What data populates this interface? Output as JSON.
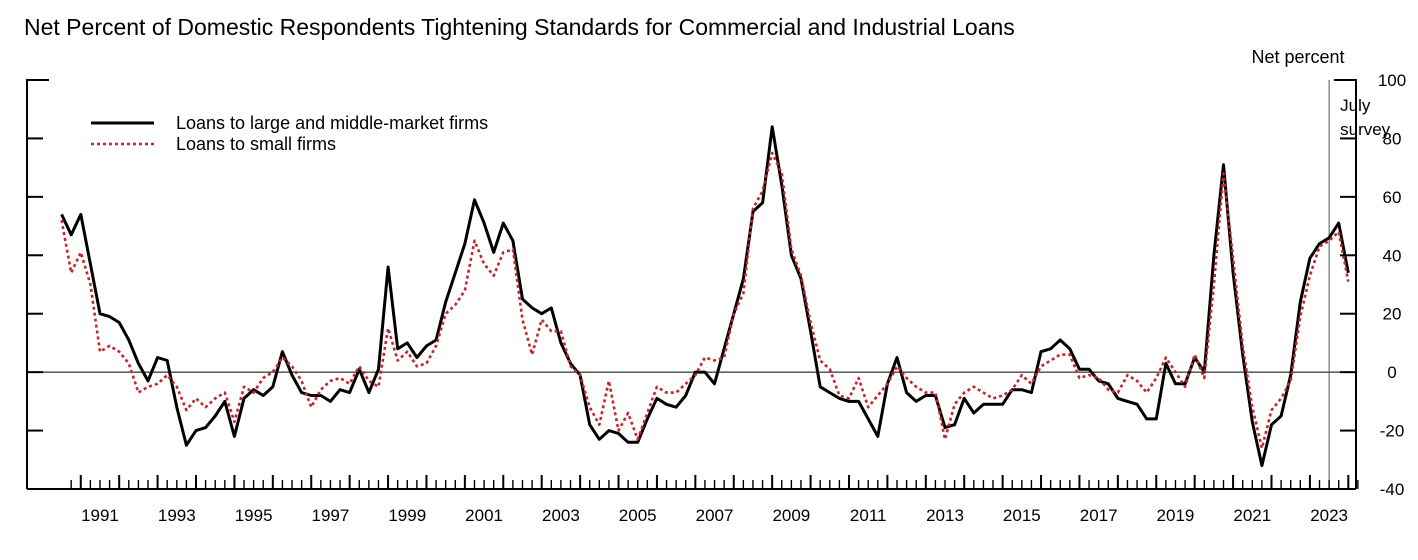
{
  "chart_data": {
    "type": "line",
    "title": "Net Percent of Domestic Respondents Tightening Standards for Commercial and Industrial Loans",
    "ylabel": "Net percent",
    "ylim": [
      -40,
      100
    ],
    "yticks": [
      -40,
      -20,
      0,
      20,
      40,
      60,
      80,
      100
    ],
    "xlim": [
      1989.6,
      2024.2
    ],
    "xtick_labels": [
      "1991",
      "1993",
      "1995",
      "1997",
      "1999",
      "2001",
      "2003",
      "2005",
      "2007",
      "2009",
      "2011",
      "2013",
      "2015",
      "2017",
      "2019",
      "2021",
      "2023"
    ],
    "legend_position": "top-left",
    "annotation": {
      "line1": "July",
      "line2": "survey",
      "x": 2023.5
    },
    "series": [
      {
        "name": "Loans to large and middle-market firms",
        "color": "#000000",
        "style": "solid",
        "points": [
          [
            1990.5,
            54
          ],
          [
            1990.75,
            47
          ],
          [
            1991.0,
            54
          ],
          [
            1991.25,
            37
          ],
          [
            1991.5,
            20
          ],
          [
            1991.75,
            19
          ],
          [
            1992.0,
            17
          ],
          [
            1992.25,
            11
          ],
          [
            1992.5,
            3
          ],
          [
            1992.75,
            -3
          ],
          [
            1993.0,
            5
          ],
          [
            1993.25,
            4
          ],
          [
            1993.5,
            -12
          ],
          [
            1993.75,
            -25
          ],
          [
            1994.0,
            -20
          ],
          [
            1994.25,
            -19
          ],
          [
            1994.5,
            -15
          ],
          [
            1994.75,
            -10
          ],
          [
            1995.0,
            -22
          ],
          [
            1995.25,
            -9
          ],
          [
            1995.5,
            -6
          ],
          [
            1995.75,
            -8
          ],
          [
            1996.0,
            -5
          ],
          [
            1996.25,
            7
          ],
          [
            1996.5,
            -1
          ],
          [
            1996.75,
            -7
          ],
          [
            1997.0,
            -8
          ],
          [
            1997.25,
            -8
          ],
          [
            1997.5,
            -10
          ],
          [
            1997.75,
            -6
          ],
          [
            1998.0,
            -7
          ],
          [
            1998.25,
            1
          ],
          [
            1998.5,
            -7
          ],
          [
            1998.75,
            1
          ],
          [
            1999.0,
            36
          ],
          [
            1999.25,
            8
          ],
          [
            1999.5,
            10
          ],
          [
            1999.75,
            5
          ],
          [
            2000.0,
            9
          ],
          [
            2000.25,
            11
          ],
          [
            2000.5,
            24
          ],
          [
            2000.75,
            34
          ],
          [
            2001.0,
            44
          ],
          [
            2001.25,
            59
          ],
          [
            2001.5,
            51
          ],
          [
            2001.75,
            41
          ],
          [
            2002.0,
            51
          ],
          [
            2002.25,
            45
          ],
          [
            2002.5,
            25
          ],
          [
            2002.75,
            22
          ],
          [
            2003.0,
            20
          ],
          [
            2003.25,
            22
          ],
          [
            2003.5,
            10
          ],
          [
            2003.75,
            3
          ],
          [
            2004.0,
            -1
          ],
          [
            2004.25,
            -18
          ],
          [
            2004.5,
            -23
          ],
          [
            2004.75,
            -20
          ],
          [
            2005.0,
            -21
          ],
          [
            2005.25,
            -24
          ],
          [
            2005.5,
            -24
          ],
          [
            2005.75,
            -16
          ],
          [
            2006.0,
            -9
          ],
          [
            2006.25,
            -11
          ],
          [
            2006.5,
            -12
          ],
          [
            2006.75,
            -8
          ],
          [
            2007.0,
            0
          ],
          [
            2007.25,
            0
          ],
          [
            2007.5,
            -4
          ],
          [
            2007.75,
            8
          ],
          [
            2008.0,
            20
          ],
          [
            2008.25,
            32
          ],
          [
            2008.5,
            55
          ],
          [
            2008.75,
            58
          ],
          [
            2009.0,
            84
          ],
          [
            2009.25,
            64
          ],
          [
            2009.5,
            40
          ],
          [
            2009.75,
            32
          ],
          [
            2010.0,
            14
          ],
          [
            2010.25,
            -5
          ],
          [
            2010.5,
            -7
          ],
          [
            2010.75,
            -9
          ],
          [
            2011.0,
            -10
          ],
          [
            2011.25,
            -10
          ],
          [
            2011.5,
            -16
          ],
          [
            2011.75,
            -22
          ],
          [
            2012.0,
            -4
          ],
          [
            2012.25,
            5
          ],
          [
            2012.5,
            -7
          ],
          [
            2012.75,
            -10
          ],
          [
            2013.0,
            -8
          ],
          [
            2013.25,
            -8
          ],
          [
            2013.5,
            -19
          ],
          [
            2013.75,
            -18
          ],
          [
            2014.0,
            -9
          ],
          [
            2014.25,
            -14
          ],
          [
            2014.5,
            -11
          ],
          [
            2014.75,
            -11
          ],
          [
            2015.0,
            -11
          ],
          [
            2015.25,
            -6
          ],
          [
            2015.5,
            -6
          ],
          [
            2015.75,
            -7
          ],
          [
            2016.0,
            7
          ],
          [
            2016.25,
            8
          ],
          [
            2016.5,
            11
          ],
          [
            2016.75,
            8
          ],
          [
            2017.0,
            1
          ],
          [
            2017.25,
            1
          ],
          [
            2017.5,
            -3
          ],
          [
            2017.75,
            -4
          ],
          [
            2018.0,
            -9
          ],
          [
            2018.25,
            -10
          ],
          [
            2018.5,
            -11
          ],
          [
            2018.75,
            -16
          ],
          [
            2019.0,
            -16
          ],
          [
            2019.25,
            3
          ],
          [
            2019.5,
            -4
          ],
          [
            2019.75,
            -4
          ],
          [
            2020.0,
            5
          ],
          [
            2020.25,
            0
          ],
          [
            2020.5,
            40
          ],
          [
            2020.75,
            71
          ],
          [
            2021.0,
            34
          ],
          [
            2021.25,
            6
          ],
          [
            2021.5,
            -17
          ],
          [
            2021.75,
            -32
          ],
          [
            2022.0,
            -18
          ],
          [
            2022.25,
            -15
          ],
          [
            2022.5,
            -1
          ],
          [
            2022.75,
            24
          ],
          [
            2023.0,
            39
          ],
          [
            2023.25,
            44
          ],
          [
            2023.5,
            46
          ],
          [
            2023.75,
            51
          ],
          [
            2024.0,
            34
          ]
        ]
      },
      {
        "name": "Loans to small firms",
        "color": "#c1272d",
        "style": "dotted",
        "points": [
          [
            1990.5,
            52
          ],
          [
            1990.75,
            34
          ],
          [
            1991.0,
            41
          ],
          [
            1991.25,
            30
          ],
          [
            1991.5,
            7
          ],
          [
            1991.75,
            9
          ],
          [
            1992.0,
            7
          ],
          [
            1992.25,
            3
          ],
          [
            1992.5,
            -7
          ],
          [
            1992.75,
            -5
          ],
          [
            1993.0,
            -4
          ],
          [
            1993.25,
            -1
          ],
          [
            1993.5,
            -5
          ],
          [
            1993.75,
            -13
          ],
          [
            1994.0,
            -9
          ],
          [
            1994.25,
            -12
          ],
          [
            1994.5,
            -9
          ],
          [
            1994.75,
            -7
          ],
          [
            1995.0,
            -17
          ],
          [
            1995.25,
            -5
          ],
          [
            1995.5,
            -7
          ],
          [
            1995.75,
            -2
          ],
          [
            1996.0,
            0
          ],
          [
            1996.25,
            5
          ],
          [
            1996.5,
            2
          ],
          [
            1996.75,
            -3
          ],
          [
            1997.0,
            -12
          ],
          [
            1997.25,
            -6
          ],
          [
            1997.5,
            -3
          ],
          [
            1997.75,
            -2
          ],
          [
            1998.0,
            -4
          ],
          [
            1998.25,
            2
          ],
          [
            1998.5,
            -3
          ],
          [
            1998.75,
            -5
          ],
          [
            1999.0,
            15
          ],
          [
            1999.25,
            4
          ],
          [
            1999.5,
            7
          ],
          [
            1999.75,
            2
          ],
          [
            2000.0,
            3
          ],
          [
            2000.25,
            9
          ],
          [
            2000.5,
            20
          ],
          [
            2000.75,
            23
          ],
          [
            2001.0,
            28
          ],
          [
            2001.25,
            45
          ],
          [
            2001.5,
            37
          ],
          [
            2001.75,
            33
          ],
          [
            2002.0,
            41
          ],
          [
            2002.25,
            42
          ],
          [
            2002.5,
            18
          ],
          [
            2002.75,
            6
          ],
          [
            2003.0,
            18
          ],
          [
            2003.25,
            14
          ],
          [
            2003.5,
            14
          ],
          [
            2003.75,
            2
          ],
          [
            2004.0,
            -1
          ],
          [
            2004.25,
            -12
          ],
          [
            2004.5,
            -18
          ],
          [
            2004.75,
            -3
          ],
          [
            2005.0,
            -20
          ],
          [
            2005.25,
            -14
          ],
          [
            2005.5,
            -23
          ],
          [
            2005.75,
            -14
          ],
          [
            2006.0,
            -5
          ],
          [
            2006.25,
            -7
          ],
          [
            2006.5,
            -7
          ],
          [
            2006.75,
            -4
          ],
          [
            2007.0,
            -1
          ],
          [
            2007.25,
            5
          ],
          [
            2007.5,
            4
          ],
          [
            2007.75,
            5
          ],
          [
            2008.0,
            20
          ],
          [
            2008.25,
            27
          ],
          [
            2008.5,
            56
          ],
          [
            2008.75,
            62
          ],
          [
            2009.0,
            75
          ],
          [
            2009.25,
            68
          ],
          [
            2009.5,
            42
          ],
          [
            2009.75,
            33
          ],
          [
            2010.0,
            17
          ],
          [
            2010.25,
            4
          ],
          [
            2010.5,
            1
          ],
          [
            2010.75,
            -8
          ],
          [
            2011.0,
            -9
          ],
          [
            2011.25,
            -2
          ],
          [
            2011.5,
            -12
          ],
          [
            2011.75,
            -8
          ],
          [
            2012.0,
            -4
          ],
          [
            2012.25,
            2
          ],
          [
            2012.5,
            -2
          ],
          [
            2012.75,
            -5
          ],
          [
            2013.0,
            -7
          ],
          [
            2013.25,
            -7
          ],
          [
            2013.5,
            -23
          ],
          [
            2013.75,
            -11
          ],
          [
            2014.0,
            -7
          ],
          [
            2014.25,
            -5
          ],
          [
            2014.5,
            -7
          ],
          [
            2014.75,
            -9
          ],
          [
            2015.0,
            -8
          ],
          [
            2015.25,
            -6
          ],
          [
            2015.5,
            -1
          ],
          [
            2015.75,
            -4
          ],
          [
            2016.0,
            2
          ],
          [
            2016.25,
            4
          ],
          [
            2016.5,
            6
          ],
          [
            2016.75,
            6
          ],
          [
            2017.0,
            -2
          ],
          [
            2017.25,
            -1
          ],
          [
            2017.5,
            -2
          ],
          [
            2017.75,
            -6
          ],
          [
            2018.0,
            -7
          ],
          [
            2018.25,
            -1
          ],
          [
            2018.5,
            -3
          ],
          [
            2018.75,
            -7
          ],
          [
            2019.0,
            -2
          ],
          [
            2019.25,
            5
          ],
          [
            2019.5,
            0
          ],
          [
            2019.75,
            -5
          ],
          [
            2020.0,
            6
          ],
          [
            2020.25,
            -2
          ],
          [
            2020.5,
            30
          ],
          [
            2020.75,
            68
          ],
          [
            2021.0,
            39
          ],
          [
            2021.25,
            9
          ],
          [
            2021.5,
            -12
          ],
          [
            2021.75,
            -26
          ],
          [
            2022.0,
            -13
          ],
          [
            2022.25,
            -9
          ],
          [
            2022.5,
            -3
          ],
          [
            2022.75,
            19
          ],
          [
            2023.0,
            33
          ],
          [
            2023.25,
            43
          ],
          [
            2023.5,
            45
          ],
          [
            2023.75,
            48
          ],
          [
            2024.0,
            31
          ]
        ]
      }
    ]
  }
}
